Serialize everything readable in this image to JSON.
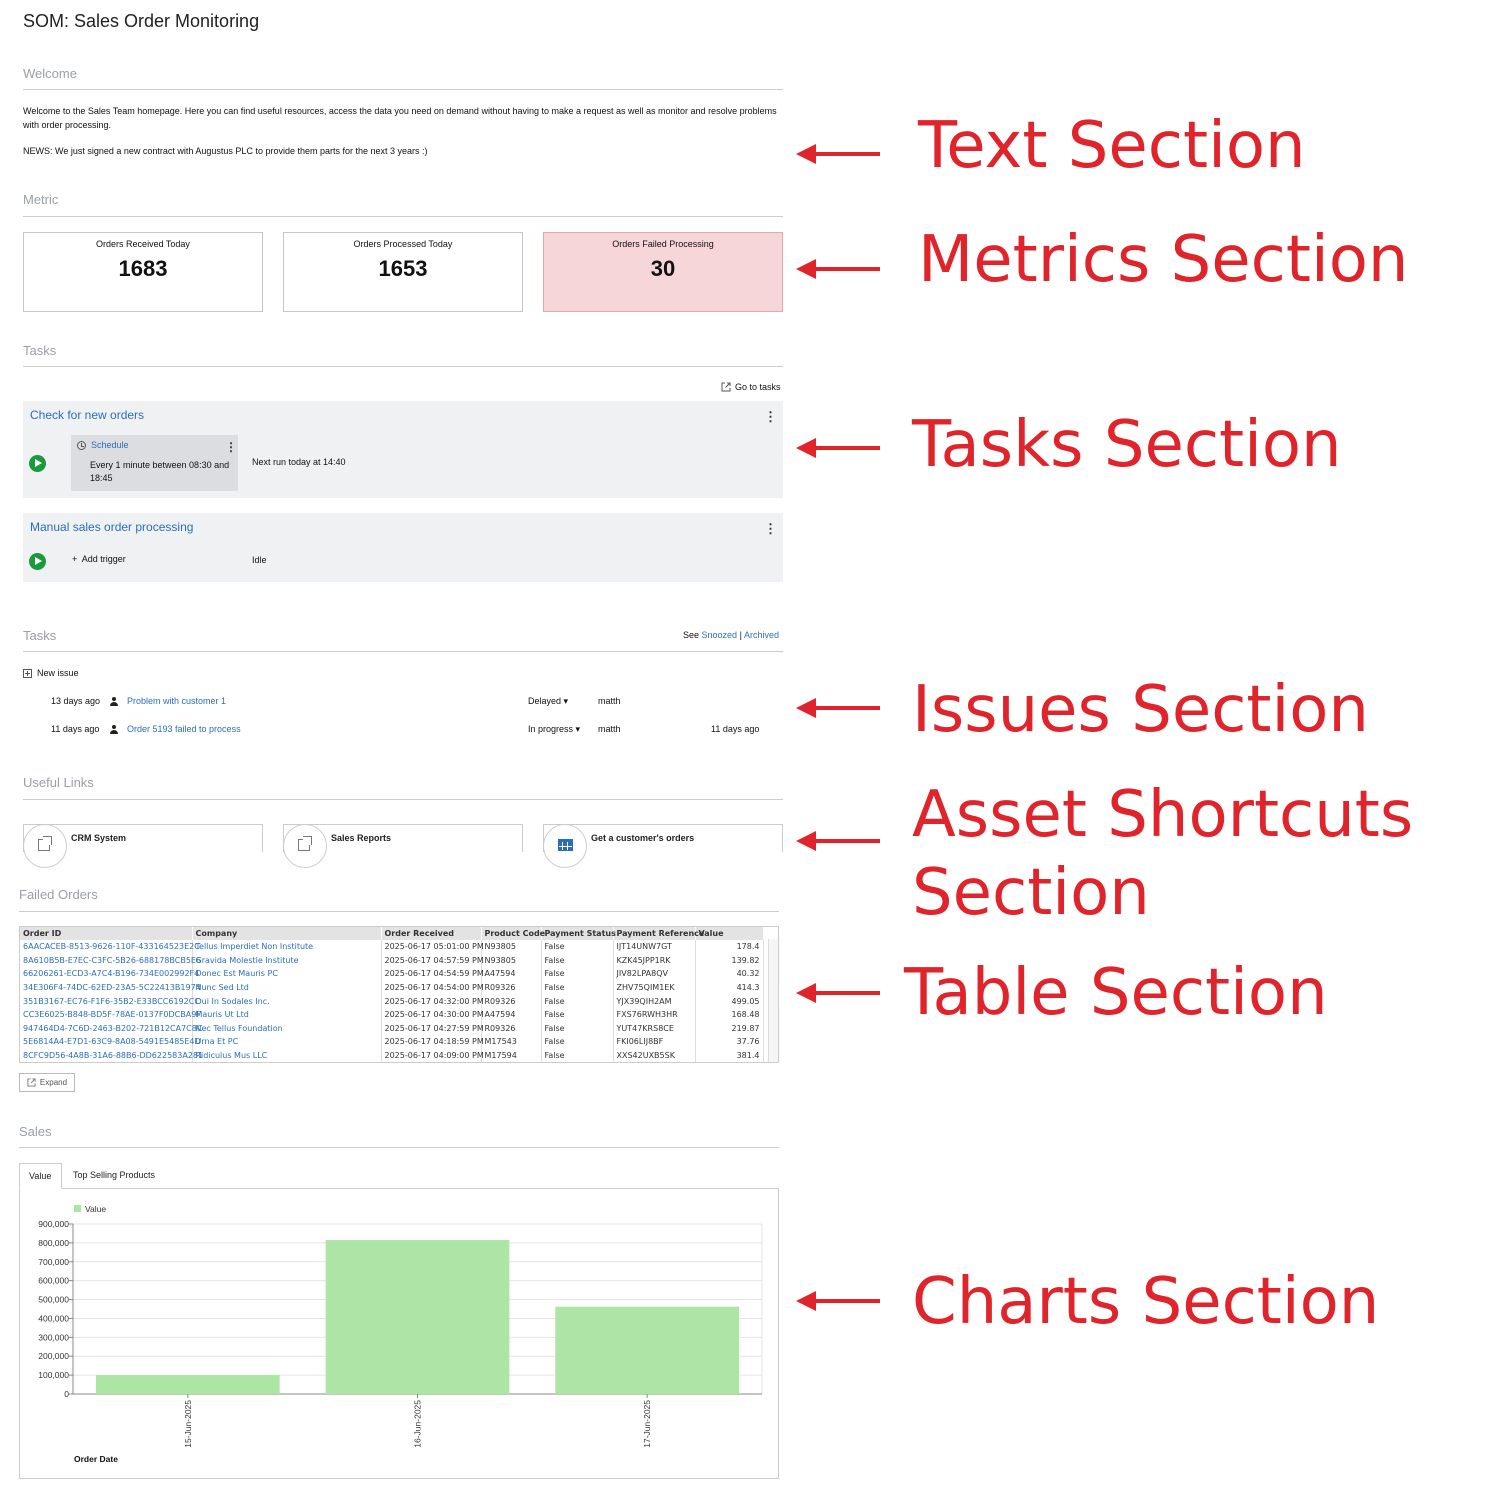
{
  "page_title": "SOM: Sales Order Monitoring",
  "welcome": {
    "heading": "Welcome",
    "text": "Welcome to the Sales Team homepage. Here you can find useful resources, access the data you need on demand without having to make a request as well as monitor and resolve problems with order processing.",
    "news": "NEWS: We just signed a new contract with Augustus PLC to provide them parts for the next 3 years :)"
  },
  "metrics": {
    "heading": "Metric",
    "cards": [
      {
        "label": "Orders Received Today",
        "value": "1683"
      },
      {
        "label": "Orders Processed Today",
        "value": "1653"
      },
      {
        "label": "Orders Failed Processing",
        "value": "30",
        "status_color": "#f7d6da"
      }
    ]
  },
  "tasks": {
    "heading": "Tasks",
    "goto_label": "Go to tasks",
    "items": [
      {
        "title": "Check for new orders",
        "trigger_title": "Schedule",
        "trigger_desc": "Every 1 minute between 08:30 and 18:45",
        "status": "Next run today at 14:40"
      },
      {
        "title": "Manual sales order processing",
        "add_trigger": "Add trigger",
        "status": "Idle"
      }
    ]
  },
  "issues": {
    "heading": "Tasks",
    "see_label": "See",
    "snoozed": "Snoozed",
    "separator": "|",
    "archived": "Archived",
    "new_issue": "New issue",
    "rows": [
      {
        "age": "13 days ago",
        "title": "Problem with customer 1",
        "state": "Delayed",
        "user": "matth",
        "updated": ""
      },
      {
        "age": "11 days ago",
        "title": "Order 5193 failed to process",
        "state": "In progress",
        "user": "matth",
        "updated": "11 days ago"
      }
    ]
  },
  "useful_links": {
    "heading": "Useful Links",
    "items": [
      {
        "label": "CRM System",
        "icon": "external-link-icon"
      },
      {
        "label": "Sales Reports",
        "icon": "external-link-icon"
      },
      {
        "label": "Get a customer's orders",
        "icon": "table-icon"
      }
    ]
  },
  "failed_orders": {
    "heading": "Failed Orders",
    "expand_label": "Expand",
    "columns": [
      "Order ID",
      "Company",
      "Order Received",
      "Product Code",
      "Payment Status",
      "Payment Reference",
      "Value"
    ],
    "rows": [
      [
        "6AACACEB-8513-9626-110F-433164523E2C",
        "Tellus Imperdiet Non Institute",
        "2025-06-17 05:01:00 PM",
        "N93805",
        "False",
        "IJT14UNW7GT",
        "178.4"
      ],
      [
        "8A610B5B-E7EC-C3FC-5B26-688178BCB5E6",
        "Gravida Molestie Institute",
        "2025-06-17 04:57:59 PM",
        "N93805",
        "False",
        "KZK45JPP1RK",
        "139.82"
      ],
      [
        "66206261-ECD3-A7C4-B196-734E002992F4",
        "Donec Est Mauris PC",
        "2025-06-17 04:54:59 PM",
        "A47594",
        "False",
        "JIV82LPA8QV",
        "40.32"
      ],
      [
        "34E306F4-74DC-62ED-23A5-5C22413B1974",
        "Nunc Sed Ltd",
        "2025-06-17 04:54:00 PM",
        "R09326",
        "False",
        "ZHV75QIM1EK",
        "414.3"
      ],
      [
        "351B3167-EC76-F1F6-35B2-E33BCC6192CC",
        "Dui In Sodales Inc.",
        "2025-06-17 04:32:00 PM",
        "R09326",
        "False",
        "YJX39QIH2AM",
        "499.05"
      ],
      [
        "CC3E6025-B848-BD5F-78AE-0137F0DCBA9F",
        "Mauris Ut Ltd",
        "2025-06-17 04:30:00 PM",
        "A47594",
        "False",
        "FXS76RWH3HR",
        "168.48"
      ],
      [
        "947464D4-7C6D-2463-B202-721B12CA7C8C",
        "Nec Tellus Foundation",
        "2025-06-17 04:27:59 PM",
        "R09326",
        "False",
        "YUT47KRS8CE",
        "219.87"
      ],
      [
        "5E6814A4-E7D1-63C9-8A08-5491E5485E4D",
        "Urna Et PC",
        "2025-06-17 04:18:59 PM",
        "M17543",
        "False",
        "FKI06LIJ8BF",
        "37.76"
      ],
      [
        "8CFC9D56-4A8B-31A6-88B6-DD622583A281",
        "Ridiculus Mus LLC",
        "2025-06-17 04:09:00 PM",
        "M17594",
        "False",
        "XXS42UXB5SK",
        "381.4"
      ]
    ]
  },
  "sales": {
    "heading": "Sales",
    "tabs": [
      "Value",
      "Top Selling Products"
    ],
    "active_tab": 0
  },
  "chart_data": {
    "type": "bar",
    "categories": [
      "15-Jun-2025",
      "16-Jun-2025",
      "17-Jun-2025"
    ],
    "series": [
      {
        "name": "Value",
        "values": [
          100000,
          815000,
          462000
        ],
        "color": "#ade5a4"
      }
    ],
    "xlabel": "Order Date",
    "ylabel": "",
    "ylim": [
      0,
      900000
    ],
    "yticks": [
      "0",
      "100,000",
      "200,000",
      "300,000",
      "400,000",
      "500,000",
      "600,000",
      "700,000",
      "800,000",
      "900,000"
    ],
    "grid": true,
    "legend": "top-left"
  },
  "annotations": {
    "text": "Text Section",
    "metrics": "Metrics Section",
    "tasks": "Tasks Section",
    "issues": "Issues Section",
    "shortcuts_1": "Asset Shortcuts",
    "shortcuts_2": "Section",
    "table": "Table Section",
    "charts": "Charts Section",
    "color": "#e0242b"
  }
}
